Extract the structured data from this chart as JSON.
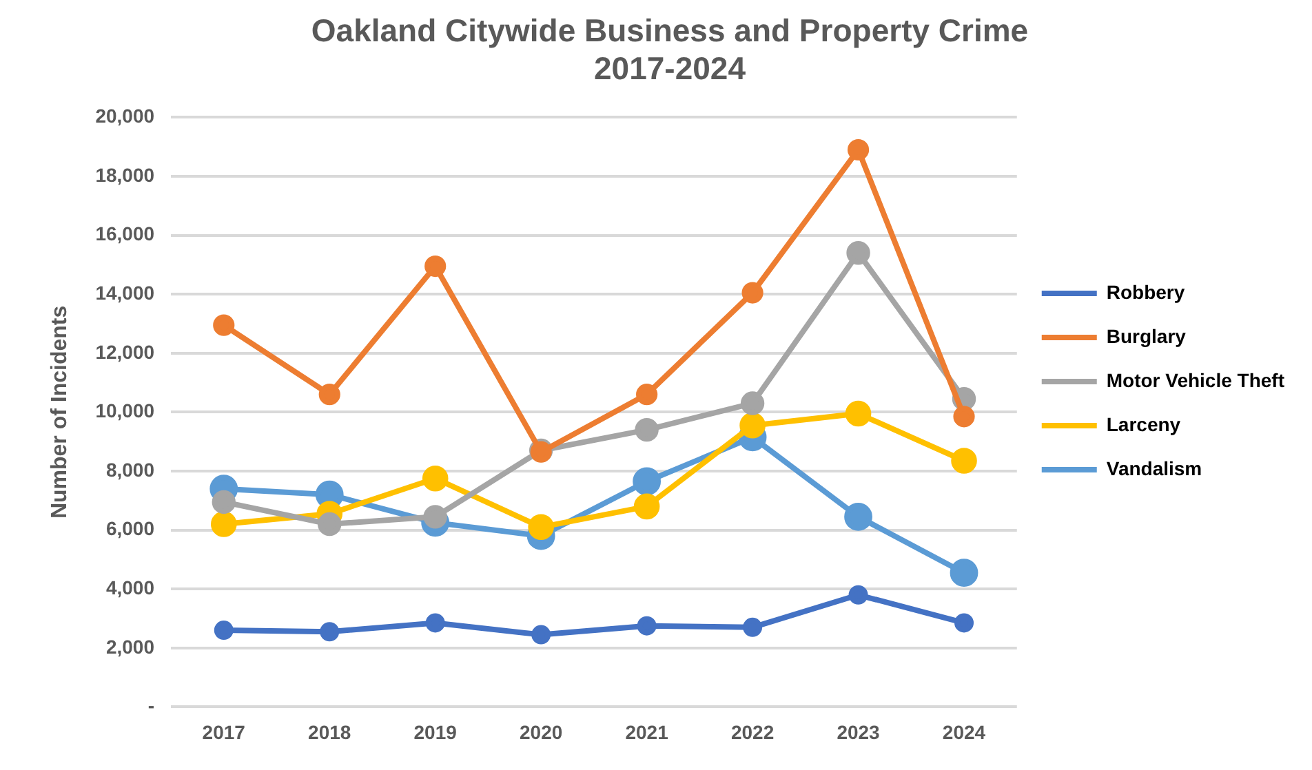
{
  "chart_data": {
    "type": "line",
    "title": "Oakland Citywide Business and Property Crime\n2017-2024",
    "ylabel": "Number of Incidents",
    "categories": [
      "2017",
      "2018",
      "2019",
      "2020",
      "2021",
      "2022",
      "2023",
      "2024"
    ],
    "series": [
      {
        "name": "Robbery",
        "color": "#4472c4",
        "values": [
          2600,
          2550,
          2850,
          2450,
          2750,
          2700,
          3800,
          2850
        ]
      },
      {
        "name": "Burglary",
        "color": "#ed7d31",
        "values": [
          12950,
          10600,
          14950,
          8650,
          10600,
          14050,
          18900,
          9850
        ]
      },
      {
        "name": "Motor Vehicle Theft",
        "color": "#a5a5a5",
        "values": [
          6950,
          6200,
          6450,
          8700,
          9400,
          10300,
          15400,
          10450
        ]
      },
      {
        "name": "Larceny",
        "color": "#ffc000",
        "values": [
          6200,
          6550,
          7750,
          6100,
          6800,
          9550,
          9950,
          8350
        ]
      },
      {
        "name": "Vandalism",
        "color": "#5b9bd5",
        "values": [
          7400,
          7200,
          6250,
          5800,
          7650,
          9150,
          6450,
          4550
        ]
      }
    ],
    "ylim": [
      0,
      20000
    ],
    "yticks": [
      {
        "value": 0,
        "label": "-"
      },
      {
        "value": 2000,
        "label": "2,000"
      },
      {
        "value": 4000,
        "label": "4,000"
      },
      {
        "value": 6000,
        "label": "6,000"
      },
      {
        "value": 8000,
        "label": "8,000"
      },
      {
        "value": 10000,
        "label": "10,000"
      },
      {
        "value": 12000,
        "label": "12,000"
      },
      {
        "value": 14000,
        "label": "14,000"
      },
      {
        "value": 16000,
        "label": "16,000"
      },
      {
        "value": 18000,
        "label": "18,000"
      },
      {
        "value": 20000,
        "label": "20,000"
      }
    ],
    "grid": "y",
    "legend": "right",
    "marker": "circle",
    "line_style": "solid"
  }
}
